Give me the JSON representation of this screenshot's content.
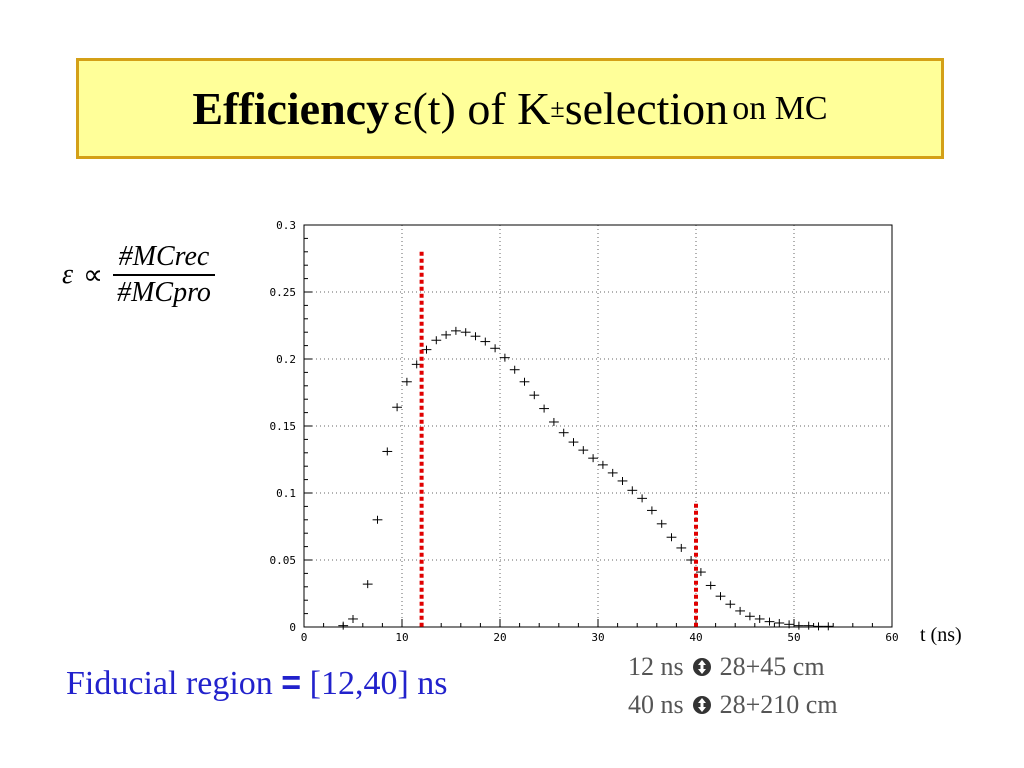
{
  "title": {
    "bold": "Efficiency",
    "epsilon": "ε",
    "arg": "(t) of K",
    "pm": "±",
    "rest": " selection",
    "small": "on MC"
  },
  "formula": {
    "lhs": "ε",
    "relation": "∝",
    "numerator": "#MCrec",
    "denominator": "#MCpro"
  },
  "x_unit_label": "t (ns)",
  "fiducial": {
    "label": "Fiducial region",
    "eq": "=",
    "range": "[12,40] ns"
  },
  "notes": [
    {
      "left": "12 ns",
      "right": "28+45 cm"
    },
    {
      "left": "40 ns",
      "right": "28+210 cm"
    }
  ],
  "chart_data": {
    "type": "scatter",
    "xlim": [
      0,
      60
    ],
    "ylim": [
      0,
      0.3
    ],
    "xticks": [
      "0",
      "10",
      "20",
      "30",
      "40",
      "50",
      "60"
    ],
    "yticks": [
      "0",
      "0.05",
      "0.1",
      "0.15",
      "0.2",
      "0.25",
      "0.3"
    ],
    "grid": true,
    "cuts": [
      {
        "x": 12,
        "y_top": 0.28
      },
      {
        "x": 40,
        "y_top": 0.092
      }
    ],
    "points": [
      [
        4,
        0.001
      ],
      [
        5,
        0.006
      ],
      [
        6.5,
        0.032
      ],
      [
        7.5,
        0.08
      ],
      [
        8.5,
        0.131
      ],
      [
        9.5,
        0.164
      ],
      [
        10.5,
        0.183
      ],
      [
        11.5,
        0.196
      ],
      [
        12.5,
        0.207
      ],
      [
        13.5,
        0.214
      ],
      [
        14.5,
        0.218
      ],
      [
        15.5,
        0.221
      ],
      [
        16.5,
        0.22
      ],
      [
        17.5,
        0.217
      ],
      [
        18.5,
        0.213
      ],
      [
        19.5,
        0.208
      ],
      [
        20.5,
        0.201
      ],
      [
        21.5,
        0.192
      ],
      [
        22.5,
        0.183
      ],
      [
        23.5,
        0.173
      ],
      [
        24.5,
        0.163
      ],
      [
        25.5,
        0.153
      ],
      [
        26.5,
        0.145
      ],
      [
        27.5,
        0.138
      ],
      [
        28.5,
        0.132
      ],
      [
        29.5,
        0.126
      ],
      [
        30.5,
        0.121
      ],
      [
        31.5,
        0.115
      ],
      [
        32.5,
        0.109
      ],
      [
        33.5,
        0.102
      ],
      [
        34.5,
        0.096
      ],
      [
        35.5,
        0.087
      ],
      [
        36.5,
        0.077
      ],
      [
        37.5,
        0.067
      ],
      [
        38.5,
        0.059
      ],
      [
        39.5,
        0.05
      ],
      [
        40.5,
        0.041
      ],
      [
        41.5,
        0.031
      ],
      [
        42.5,
        0.023
      ],
      [
        43.5,
        0.017
      ],
      [
        44.5,
        0.012
      ],
      [
        45.5,
        0.008
      ],
      [
        46.5,
        0.006
      ],
      [
        47.5,
        0.004
      ],
      [
        48.5,
        0.003
      ],
      [
        49.5,
        0.002
      ],
      [
        50.5,
        0.001
      ],
      [
        51.5,
        0.001
      ],
      [
        52.5,
        0.0005
      ],
      [
        53.5,
        0.0005
      ]
    ]
  }
}
